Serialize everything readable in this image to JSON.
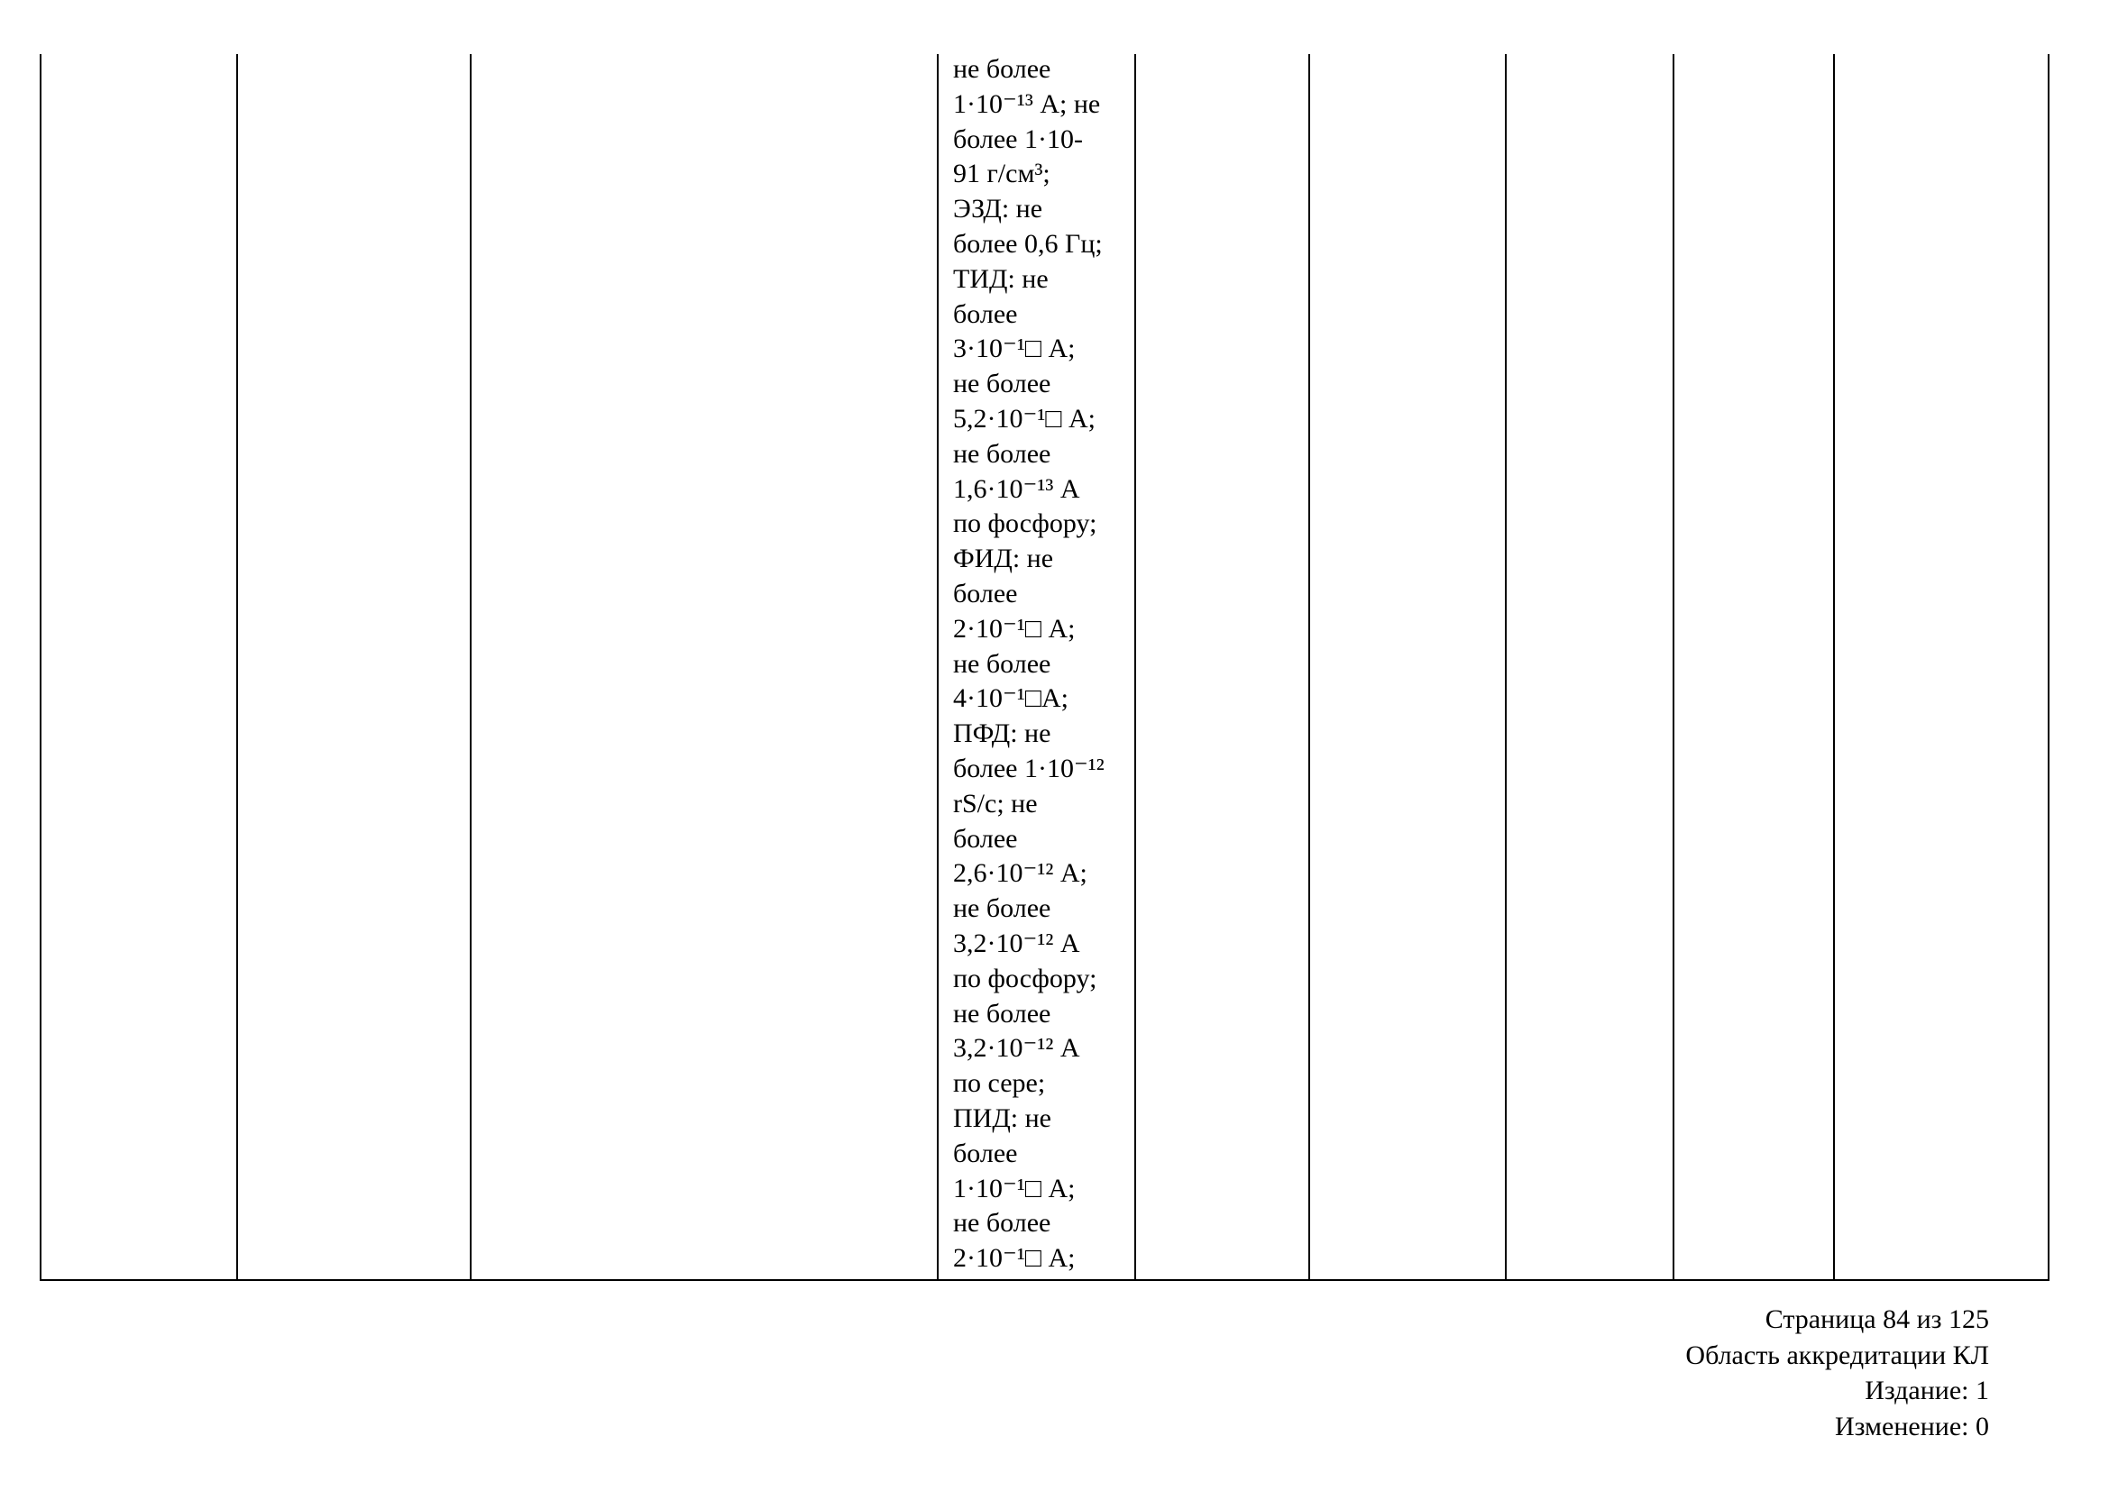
{
  "table": {
    "spec_cell_lines": [
      "не более",
      "1·10⁻¹³ А; не",
      "более 1·10-",
      "91 г/см³;",
      "ЭЗД: не",
      "более 0,6 Гц;",
      "ТИД: не",
      "более",
      "3·10⁻¹□ А;",
      "не более",
      "5,2·10⁻¹□ А;",
      "не более",
      "1,6·10⁻¹³ А",
      "по фосфору;",
      "ФИД: не",
      "более",
      "2·10⁻¹□ А;",
      "не более",
      "4·10⁻¹□А;",
      "ПФД: не",
      "более 1·10⁻¹²",
      "rS/c; не",
      "более",
      "2,6·10⁻¹² А;",
      "не более",
      "3,2·10⁻¹² А",
      "по фосфору;",
      "не более",
      "3,2·10⁻¹² А",
      "по сере;",
      "ПИД: не",
      "более",
      "1·10⁻¹□ А;",
      "не более",
      "2·10⁻¹□ А;"
    ]
  },
  "footer": {
    "page": "Страница 84 из 125",
    "scope": "Область аккредитации КЛ",
    "edition": "Издание: 1",
    "revision": "Изменение: 0"
  }
}
